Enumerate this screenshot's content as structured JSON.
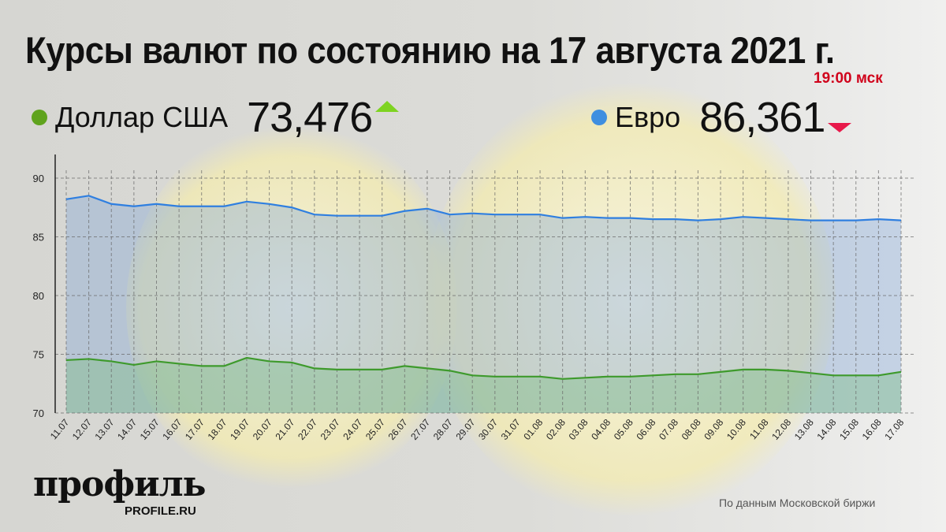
{
  "header": {
    "title": "Курсы валют по состоянию на 17 августа 2021 г.",
    "time": "19:00 мск"
  },
  "legend": [
    {
      "name": "Доллар США",
      "value": "73,476",
      "trend": "up",
      "color": "#5fa31d",
      "trend_color": "#7ed321"
    },
    {
      "name": "Евро",
      "value": "86,361",
      "trend": "down",
      "color": "#3f8fe0",
      "trend_color": "#e8194a"
    }
  ],
  "footer": {
    "logo": "профиль",
    "logo_sub": "PROFILE.RU",
    "source": "По данным Московской биржи"
  },
  "chart_data": {
    "type": "area",
    "ylim": [
      70,
      90
    ],
    "yticks": [
      70,
      75,
      80,
      85,
      90
    ],
    "grid": true,
    "categories": [
      "11.07",
      "12.07",
      "13.07",
      "14.07",
      "15.07",
      "16.07",
      "17.07",
      "18.07",
      "19.07",
      "20.07",
      "21.07",
      "22.07",
      "23.07",
      "24.07",
      "25.07",
      "26.07",
      "27.07",
      "28.07",
      "29.07",
      "30.07",
      "31.07",
      "01.08",
      "02.08",
      "03.08",
      "04.08",
      "05.08",
      "06.08",
      "07.08",
      "08.08",
      "09.08",
      "10.08",
      "11.08",
      "12.08",
      "13.08",
      "14.08",
      "15.08",
      "16.08",
      "17.08"
    ],
    "series": [
      {
        "name": "Евро",
        "color": "#2f7fe0",
        "fill": "rgba(120,160,215,0.35)",
        "values": [
          88.2,
          88.5,
          87.8,
          87.6,
          87.8,
          87.6,
          87.6,
          87.6,
          88.0,
          87.8,
          87.5,
          86.9,
          86.8,
          86.8,
          86.8,
          87.2,
          87.4,
          86.9,
          87.0,
          86.9,
          86.9,
          86.9,
          86.6,
          86.7,
          86.6,
          86.6,
          86.5,
          86.5,
          86.4,
          86.5,
          86.7,
          86.6,
          86.5,
          86.4,
          86.4,
          86.4,
          86.5,
          86.4
        ]
      },
      {
        "name": "Доллар США",
        "color": "#3e9a2c",
        "fill": "rgba(130,190,140,0.45)",
        "values": [
          74.5,
          74.6,
          74.4,
          74.1,
          74.4,
          74.2,
          74.0,
          74.0,
          74.7,
          74.4,
          74.3,
          73.8,
          73.7,
          73.7,
          73.7,
          74.0,
          73.8,
          73.6,
          73.2,
          73.1,
          73.1,
          73.1,
          72.9,
          73.0,
          73.1,
          73.1,
          73.2,
          73.3,
          73.3,
          73.5,
          73.7,
          73.7,
          73.6,
          73.4,
          73.2,
          73.2,
          73.2,
          73.5
        ]
      }
    ]
  }
}
